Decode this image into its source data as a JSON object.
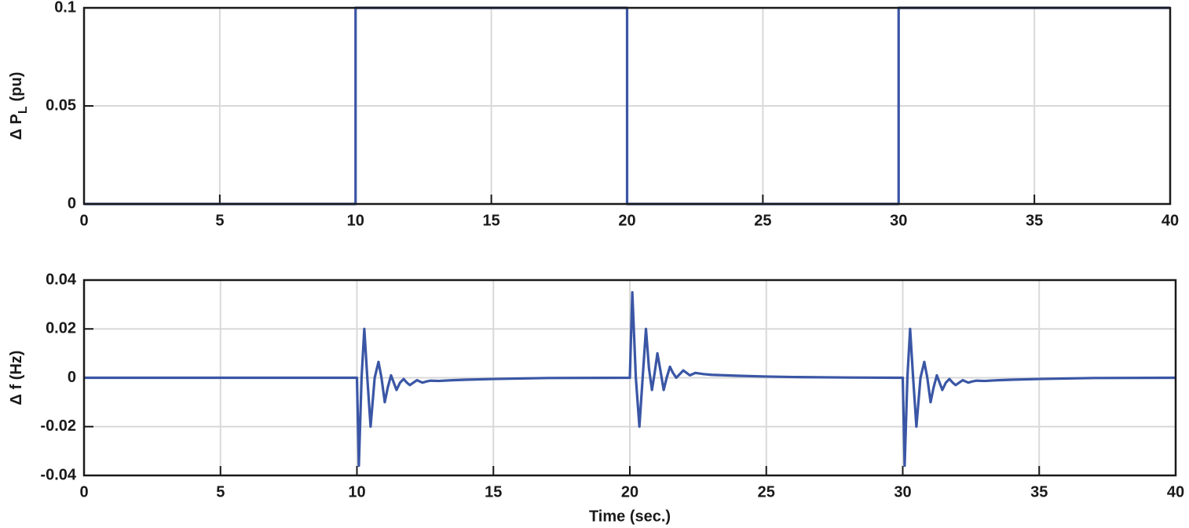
{
  "chart_data": [
    {
      "type": "line",
      "ylabel": {
        "text": "Δ P",
        "subscript": "L",
        "unit": "(pu)"
      },
      "xlim": [
        0,
        40
      ],
      "xticks": [
        0,
        5,
        10,
        15,
        20,
        25,
        30,
        35,
        40
      ],
      "ylim": [
        0,
        0.1
      ],
      "yticks": [
        0,
        0.05,
        0.1
      ],
      "grid": true,
      "series": [
        {
          "color": "#3a56a5",
          "x": [
            0,
            10,
            10,
            20,
            20,
            30,
            30,
            40
          ],
          "values": [
            0,
            0,
            0.1,
            0.1,
            0,
            0,
            0.1,
            0.1
          ]
        }
      ]
    },
    {
      "type": "line",
      "ylabel": {
        "text": "Δ f (Hz)"
      },
      "xlabel": "Time (sec.)",
      "xlim": [
        0,
        40
      ],
      "xticks": [
        0,
        5,
        10,
        15,
        20,
        25,
        30,
        35,
        40
      ],
      "ylim": [
        -0.04,
        0.04
      ],
      "yticks": [
        -0.04,
        -0.02,
        0,
        0.02,
        0.04
      ],
      "grid": true,
      "series": [
        {
          "color": "#3a56a5",
          "x": [
            0,
            10,
            10.07,
            10.17,
            10.27,
            10.38,
            10.5,
            10.65,
            10.79,
            10.9,
            11.02,
            11.13,
            11.25,
            11.35,
            11.45,
            11.58,
            11.71,
            11.83,
            11.94,
            12.07,
            12.2,
            12.3,
            12.4,
            12.55,
            12.7,
            13,
            13.5,
            14,
            15,
            16,
            17,
            20,
            20.09,
            20.22,
            20.35,
            20.47,
            20.59,
            20.7,
            20.81,
            20.91,
            21.01,
            21.12,
            21.24,
            21.35,
            21.47,
            21.58,
            21.7,
            21.83,
            21.96,
            22.2,
            22.4,
            22.7,
            23,
            23.5,
            24,
            25,
            26,
            28,
            30,
            30.07,
            30.17,
            30.27,
            30.38,
            30.5,
            30.65,
            30.79,
            30.9,
            31.02,
            31.13,
            31.25,
            31.35,
            31.45,
            31.58,
            31.71,
            31.83,
            31.94,
            32.07,
            32.2,
            32.3,
            32.4,
            32.55,
            32.7,
            33,
            33.5,
            34,
            35,
            36,
            37,
            40
          ],
          "values": [
            0,
            0,
            -0.036,
            0,
            0.02,
            0,
            -0.02,
            0,
            0.0065,
            0,
            -0.01,
            -0.004,
            0.001,
            -0.002,
            -0.005,
            -0.002,
            -0.0005,
            -0.002,
            -0.003,
            -0.002,
            -0.001,
            -0.0015,
            -0.002,
            -0.0015,
            -0.0012,
            -0.0013,
            -0.001,
            -0.0008,
            -0.0005,
            -0.0003,
            -0.0001,
            0,
            0.035,
            0,
            -0.02,
            0,
            0.02,
            0.004,
            -0.005,
            0.002,
            0.01,
            0.003,
            -0.005,
            0,
            0.0045,
            0.002,
            0,
            0.0015,
            0.003,
            0.001,
            0.002,
            0.0015,
            0.0012,
            0.001,
            0.0008,
            0.0005,
            0.0003,
            0.0001,
            0,
            -0.036,
            0,
            0.02,
            0,
            -0.02,
            0,
            0.0065,
            0,
            -0.01,
            -0.004,
            0.001,
            -0.002,
            -0.005,
            -0.002,
            -0.0005,
            -0.002,
            -0.003,
            -0.002,
            -0.001,
            -0.0015,
            -0.002,
            -0.0015,
            -0.0012,
            -0.0013,
            -0.001,
            -0.0008,
            -0.0005,
            -0.0003,
            -0.0001,
            0
          ]
        }
      ]
    }
  ]
}
